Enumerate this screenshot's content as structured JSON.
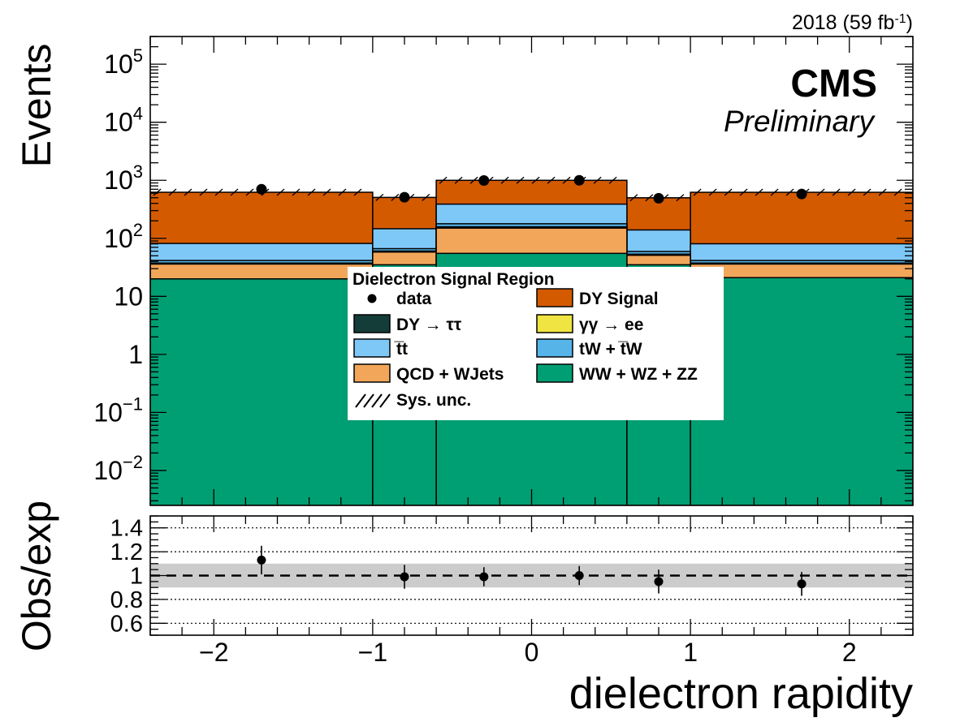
{
  "header": {
    "lumi_label": "2018 (59 fb",
    "lumi_sup": "-1",
    "lumi_close": ")",
    "experiment": "CMS",
    "status": "Preliminary"
  },
  "legend": {
    "title": "Dielectron Signal Region",
    "entries": [
      {
        "label": "data",
        "type": "marker",
        "color": "#000000"
      },
      {
        "label": "DY Signal",
        "type": "box",
        "color": "#d45a00"
      },
      {
        "label": "DY → ττ",
        "type": "box",
        "color": "#143c38"
      },
      {
        "label": "γγ → ee",
        "type": "box",
        "color": "#f0e442"
      },
      {
        "label": "t̅t",
        "type": "box",
        "color": "#7ec8f8"
      },
      {
        "label": "tW + t̅W",
        "type": "box",
        "color": "#56b4e9"
      },
      {
        "label": "QCD + WJets",
        "type": "box",
        "color": "#f2a65a"
      },
      {
        "label": "WW + WZ + ZZ",
        "type": "box",
        "color": "#009e73"
      },
      {
        "label": "Sys. unc.",
        "type": "hatch",
        "color": "#000000"
      }
    ]
  },
  "chart_data": [
    {
      "type": "bar",
      "subtype": "stacked-histogram",
      "xlabel": "dielectron rapidity",
      "ylabel": "Events",
      "log_y": true,
      "xlim": [
        -2.4,
        2.4
      ],
      "ylim": [
        0.0025,
        300000
      ],
      "x_ticks": [
        -2,
        -1,
        0,
        1,
        2
      ],
      "x_tick_labels": [
        "−2",
        "−1",
        "0",
        "1",
        "2"
      ],
      "y_ticks": [
        0.01,
        0.1,
        1,
        10,
        100,
        1000,
        10000,
        100000
      ],
      "y_tick_labels": [
        {
          "base": "10",
          "exp": "−2"
        },
        {
          "base": "10",
          "exp": "−1"
        },
        {
          "base": "1",
          "exp": ""
        },
        {
          "base": "10",
          "exp": ""
        },
        {
          "base": "10",
          "exp": "2"
        },
        {
          "base": "10",
          "exp": "3"
        },
        {
          "base": "10",
          "exp": "4"
        },
        {
          "base": "10",
          "exp": "5"
        }
      ],
      "bin_edges": [
        -2.4,
        -1.0,
        -0.6,
        0.6,
        1.0,
        2.4
      ],
      "series": [
        {
          "name": "WW + WZ + ZZ",
          "color": "#009e73",
          "values": [
            20,
            35,
            55,
            35,
            21
          ]
        },
        {
          "name": "QCD + WJets",
          "color": "#f2a65a",
          "values": [
            16,
            23,
            95,
            16,
            15
          ]
        },
        {
          "name": "γγ → ee",
          "color": "#f0e442",
          "values": [
            0.5,
            0.8,
            3,
            0.8,
            0.5
          ]
        },
        {
          "name": "DY → ττ",
          "color": "#143c38",
          "values": [
            1,
            1.5,
            5,
            1.5,
            1
          ]
        },
        {
          "name": "tW + t̅W",
          "color": "#56b4e9",
          "values": [
            4,
            6,
            20,
            6,
            4
          ]
        },
        {
          "name": "t̅t",
          "color": "#7ec8f8",
          "values": [
            40,
            80,
            210,
            80,
            39
          ]
        },
        {
          "name": "DY Signal",
          "color": "#d45a00",
          "values": [
            540,
            360,
            610,
            360,
            540
          ]
        }
      ],
      "data_points": [
        {
          "x": -1.7,
          "y": 700
        },
        {
          "x": -0.8,
          "y": 510
        },
        {
          "x": -0.3,
          "y": 990
        },
        {
          "x": 0.3,
          "y": 1000
        },
        {
          "x": 0.8,
          "y": 490
        },
        {
          "x": 1.7,
          "y": 580
        }
      ]
    },
    {
      "type": "scatter",
      "subtype": "ratio",
      "xlabel": "dielectron rapidity",
      "ylabel": "Obs/exp",
      "xlim": [
        -2.4,
        2.4
      ],
      "ylim": [
        0.5,
        1.5
      ],
      "y_ticks": [
        0.6,
        0.8,
        1,
        1.2,
        1.4
      ],
      "y_tick_labels": [
        "0.6",
        "0.8",
        "1",
        "1.2",
        "1.4"
      ],
      "reference_line": 1,
      "uncertainty_band": [
        0.9,
        1.1
      ],
      "points": [
        {
          "x": -1.7,
          "y": 1.13,
          "err": 0.12
        },
        {
          "x": -0.8,
          "y": 0.99,
          "err": 0.1
        },
        {
          "x": -0.3,
          "y": 0.99,
          "err": 0.08
        },
        {
          "x": 0.3,
          "y": 1.0,
          "err": 0.08
        },
        {
          "x": 0.8,
          "y": 0.95,
          "err": 0.1
        },
        {
          "x": 1.7,
          "y": 0.93,
          "err": 0.1
        }
      ]
    }
  ]
}
